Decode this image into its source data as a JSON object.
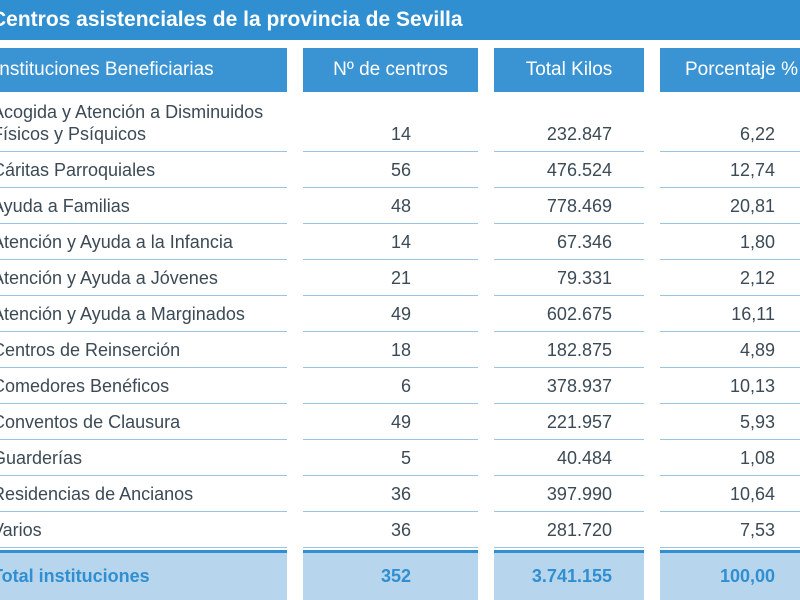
{
  "title": "Centros asistenciales de la provincia de Sevilla",
  "headers": [
    "Instituciones Beneficiarias",
    "Nº de centros",
    "Total Kilos",
    "Porcentaje %"
  ],
  "rows": [
    {
      "institucion": "Acogida y Atención a Disminuidos Físicos y Psíquicos",
      "centros": "14",
      "kilos": "232.847",
      "porcentaje": "6,22"
    },
    {
      "institucion": "Cáritas Parroquiales",
      "centros": "56",
      "kilos": "476.524",
      "porcentaje": "12,74"
    },
    {
      "institucion": "Ayuda a Familias",
      "centros": "48",
      "kilos": "778.469",
      "porcentaje": "20,81"
    },
    {
      "institucion": "Atención y Ayuda a la Infancia",
      "centros": "14",
      "kilos": "67.346",
      "porcentaje": "1,80"
    },
    {
      "institucion": "Atención y Ayuda a Jóvenes",
      "centros": "21",
      "kilos": "79.331",
      "porcentaje": "2,12"
    },
    {
      "institucion": "Atención y Ayuda a Marginados",
      "centros": "49",
      "kilos": "602.675",
      "porcentaje": "16,11"
    },
    {
      "institucion": "Centros de Reinserción",
      "centros": "18",
      "kilos": "182.875",
      "porcentaje": "4,89"
    },
    {
      "institucion": "Comedores Benéficos",
      "centros": "6",
      "kilos": "378.937",
      "porcentaje": "10,13"
    },
    {
      "institucion": "Conventos de Clausura",
      "centros": "49",
      "kilos": "221.957",
      "porcentaje": "5,93"
    },
    {
      "institucion": "Guarderías",
      "centros": "5",
      "kilos": "40.484",
      "porcentaje": "1,08"
    },
    {
      "institucion": "Residencias de Ancianos",
      "centros": "36",
      "kilos": "397.990",
      "porcentaje": "10,64"
    },
    {
      "institucion": "Varios",
      "centros": "36",
      "kilos": "281.720",
      "porcentaje": "7,53"
    }
  ],
  "total": {
    "label": "Total instituciones",
    "centros": "352",
    "kilos": "3.741.155",
    "porcentaje": "100,00"
  },
  "colors": {
    "header_blue": "#3a94d3",
    "title_blue": "#2f8fd0",
    "total_bg": "#b7d6ee",
    "row_line": "#9cc3e2"
  }
}
